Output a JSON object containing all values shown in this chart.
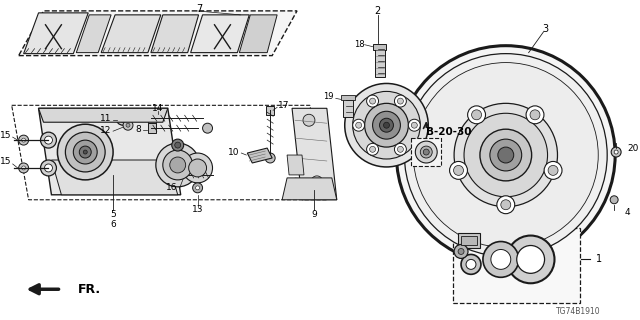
{
  "fig_code": "TG74B1910",
  "bg_color": "#ffffff",
  "lc": "#1a1a1a",
  "gc": "#666666"
}
